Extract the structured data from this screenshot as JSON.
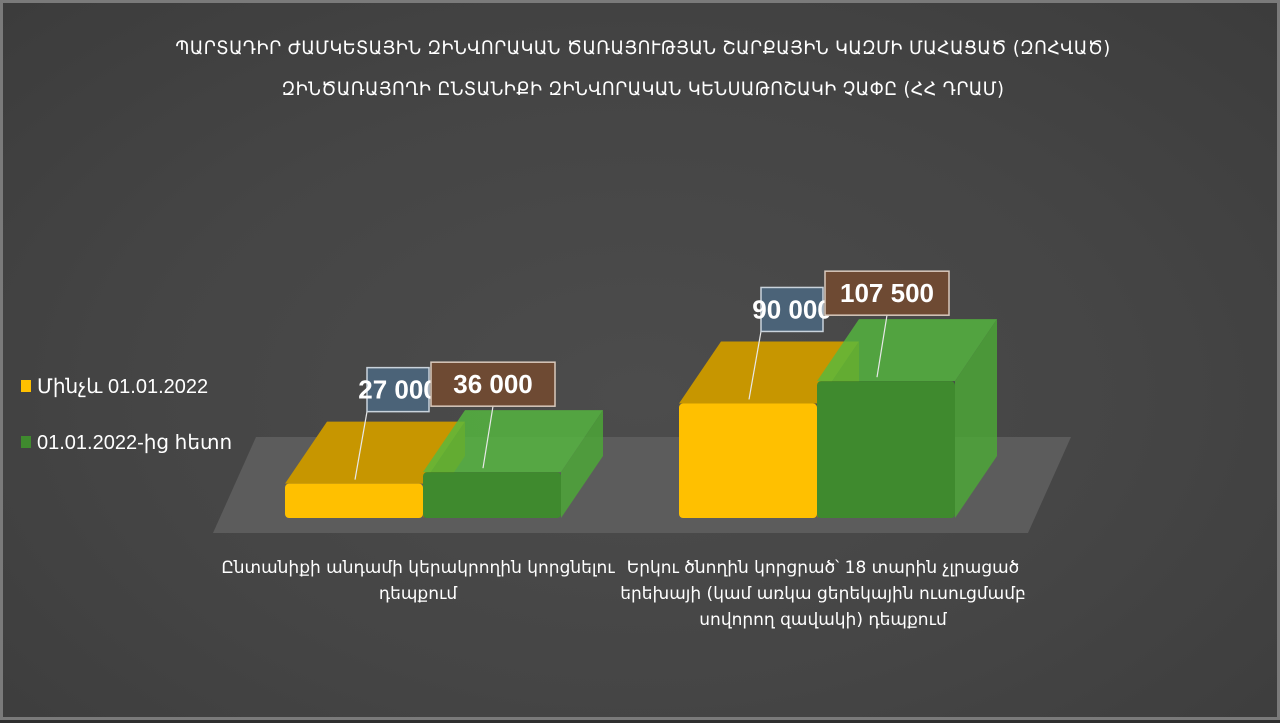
{
  "chart_data": {
    "type": "bar",
    "title": "ՊԱՐՏԱԴԻՐ ԺԱՄԿԵՏԱՅԻՆ ԶԻՆՎՈՐԱԿԱՆ ԾԱՌԱՅՈՒԹՅԱՆ ՇԱՐՔԱՅԻՆ ԿԱԶՄԻ ՄԱՀԱՑԱԾ (ԶՈՀՎԱԾ)",
    "subtitle": "ԶԻՆԾԱՌԱՅՈՂԻ ԸՆՏԱՆԻՔԻ ԶԻՆՎՈՐԱԿԱՆ ԿԵՆՍԱԹՈՇԱԿԻ ՉԱՓԸ (ՀՀ ԴՐԱՄ)",
    "categories": [
      "Ընտանիքի անդամի կերակրողին կորցնելու դեպքում",
      "Երկու ծնողին կորցրած՝ 18 տարին չլրացած երեխայի (կամ առկա ցերեկային ուսուցմամբ սովորող զավակի) դեպքում"
    ],
    "category_lines": [
      [
        "Ընտանիքի անդամի կերակրողին կորցնելու",
        "դեպքում"
      ],
      [
        "Երկու ծնողին կորցրած՝ 18 տարին չլրացած",
        "երեխայի (կամ առկա ցերեկային ուսուցմամբ",
        "սովորող զավակի) դեպքում"
      ]
    ],
    "series": [
      {
        "name": "Մինչև 01.01.2022",
        "values": [
          27000,
          90000
        ],
        "labels": [
          "27 000",
          "90 000"
        ],
        "color": "#ffc000"
      },
      {
        "name": "01.01.2022-ից հետո",
        "values": [
          36000,
          107500
        ],
        "labels": [
          "36 000",
          "107 500"
        ],
        "color": "#3f8a2e"
      }
    ],
    "legend_position": "left",
    "grid": false,
    "ylim": [
      0,
      110000
    ]
  }
}
